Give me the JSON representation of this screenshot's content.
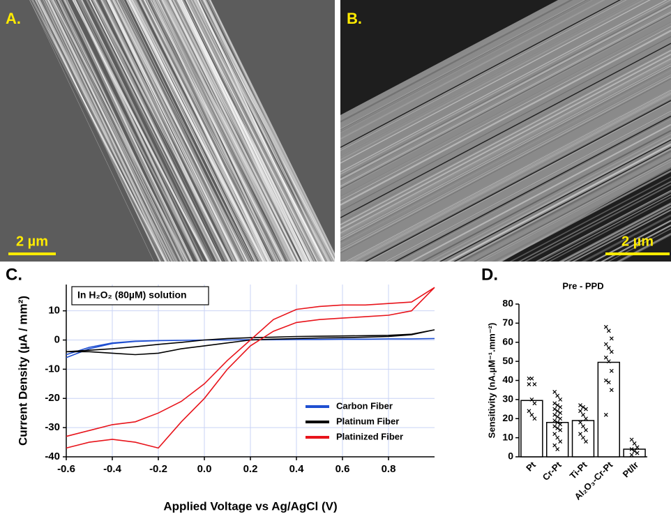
{
  "panels": {
    "a": {
      "label": "A.",
      "scale_bar": "2 µm"
    },
    "b": {
      "label": "B.",
      "scale_bar": "2 µm"
    }
  },
  "chart_data": [
    {
      "type": "line",
      "panel_label": "C.",
      "annotation": "In H₂O₂ (80µM) solution",
      "xlabel": "Applied Voltage vs Ag/AgCl (V)",
      "ylabel": "Current Density (µA / mm²)",
      "x": [
        -0.6,
        -0.5,
        -0.4,
        -0.3,
        -0.2,
        -0.1,
        0,
        0.1,
        0.2,
        0.3,
        0.4,
        0.5,
        0.6,
        0.7,
        0.8,
        0.9,
        1.0,
        0.9,
        0.8,
        0.7,
        0.6,
        0.5,
        0.4,
        0.3,
        0.2,
        0.1,
        0,
        -0.1,
        -0.2,
        -0.3,
        -0.4,
        -0.5,
        -0.6
      ],
      "series": [
        {
          "name": "Carbon Fiber",
          "color": "#1f4fd1",
          "values": [
            -6,
            -3,
            -1.2,
            -0.5,
            -0.2,
            -0.1,
            0,
            0,
            0.1,
            0.1,
            0.2,
            0.2,
            0.3,
            0.3,
            0.4,
            0.4,
            0.5,
            0.4,
            0.4,
            0.3,
            0.3,
            0.2,
            0.2,
            0.1,
            0.1,
            0,
            0,
            -0.1,
            -0.2,
            -0.4,
            -1,
            -2.5,
            -5
          ]
        },
        {
          "name": "Platinum Fiber",
          "color": "#000000",
          "values": [
            -4,
            -4,
            -4.5,
            -5,
            -4.5,
            -3,
            -2,
            -1,
            0,
            0.3,
            0.5,
            0.7,
            0.8,
            1,
            1.2,
            1.8,
            3.5,
            2,
            1.6,
            1.5,
            1.4,
            1.3,
            1.2,
            1,
            0.8,
            0.5,
            0,
            -0.8,
            -1.5,
            -2.3,
            -3,
            -3.5,
            -4
          ]
        },
        {
          "name": "Platinized Fiber",
          "color": "#e8141b",
          "values": [
            -37,
            -35,
            -34,
            -35,
            -37,
            -28,
            -20,
            -10,
            -2,
            3,
            6,
            7,
            7.5,
            8,
            8.5,
            10,
            18,
            13,
            12.5,
            12,
            12,
            11.5,
            10.5,
            7,
            0,
            -7,
            -15,
            -21,
            -25,
            -28,
            -29,
            -31,
            -33
          ]
        }
      ],
      "xlim": [
        -0.6,
        1.0
      ],
      "ylim": [
        -40,
        19
      ],
      "xticks": [
        -0.6,
        -0.4,
        -0.2,
        {
          "value": 0,
          "label": "0.0"
        },
        0.2,
        0.4,
        0.6,
        0.8
      ],
      "yticks": [
        -40,
        -30,
        -20,
        -10,
        0,
        10
      ],
      "grid": true,
      "legend": "lower right"
    },
    {
      "type": "bar",
      "panel_label": "D.",
      "title": "Pre - PPD",
      "ylabel": "Sensitivity (nA.µM⁻¹.mm⁻²)",
      "categories": [
        "Pt",
        "Cr-Pt",
        "Ti-Pt",
        "Al₂O₃-Cr-Pt",
        "Pt/Ir"
      ],
      "values": [
        29.5,
        18,
        19,
        49.5,
        4
      ],
      "color": "#ffffff",
      "points": [
        [
          41,
          41,
          38,
          38,
          30,
          28,
          24,
          22,
          20
        ],
        [
          34,
          32,
          30,
          28,
          27,
          26,
          25,
          24,
          23,
          22,
          21,
          20,
          19,
          18,
          17,
          16,
          15,
          14,
          12,
          10,
          8,
          6,
          4
        ],
        [
          27,
          26,
          25,
          24,
          22,
          20,
          18,
          16,
          14,
          12,
          10,
          8
        ],
        [
          68,
          66,
          62,
          59,
          57,
          55,
          52,
          50,
          45,
          40,
          39,
          35,
          22
        ],
        [
          9,
          7,
          5,
          4,
          3,
          2,
          1
        ]
      ],
      "ylim": [
        0,
        80
      ],
      "yticks": [
        0,
        10,
        20,
        30,
        40,
        50,
        60,
        70,
        80
      ]
    }
  ]
}
